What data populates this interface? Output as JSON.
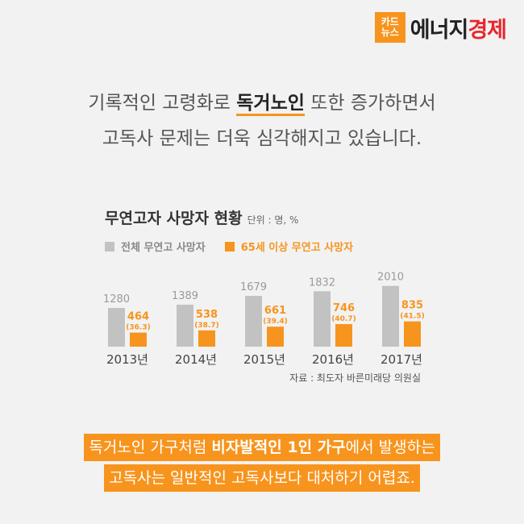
{
  "logo": {
    "badge_top": "카드",
    "badge_bottom": "뉴스",
    "brand_a": "에너지",
    "brand_b": "경제"
  },
  "intro": {
    "line1_a": "기록적인 고령화로 ",
    "line1_hl": "독거노인",
    "line1_b": " 또한 증가하면서",
    "line2": "고독사 문제는 더욱 심각해지고 있습니다."
  },
  "legend": {
    "total": "전체 무연고 사망자",
    "elderly": "65세 이상 무연고 사망자"
  },
  "source": "자료 : 최도자 바른미래당 의원실",
  "outro": {
    "line1_a": "독거노인 가구처럼 ",
    "line1_bold": "비자발적인 1인 가구",
    "line1_b": "에서 발생하는",
    "line2": "고독사는 일반적인 고독사보다 대처하기 어렵죠."
  },
  "colors": {
    "total": "#c2c2c2",
    "elderly": "#f7941d",
    "accent": "#f7941d",
    "text": "#555555"
  },
  "chart_data": {
    "type": "bar",
    "title": "무연고자 사망자 현황",
    "unit": "단위 : 명, %",
    "categories": [
      "2013년",
      "2014년",
      "2015년",
      "2016년",
      "2017년"
    ],
    "series": [
      {
        "name": "전체 무연고 사망자",
        "values": [
          1280,
          1389,
          1679,
          1832,
          2010
        ]
      },
      {
        "name": "65세 이상 무연고 사망자",
        "values": [
          464,
          538,
          661,
          746,
          835
        ],
        "percent_labels": [
          "(36.3)",
          "(38.7)",
          "(39.4)",
          "(40.7)",
          "(41.5)"
        ]
      }
    ],
    "ylim": [
      0,
      2200
    ]
  }
}
